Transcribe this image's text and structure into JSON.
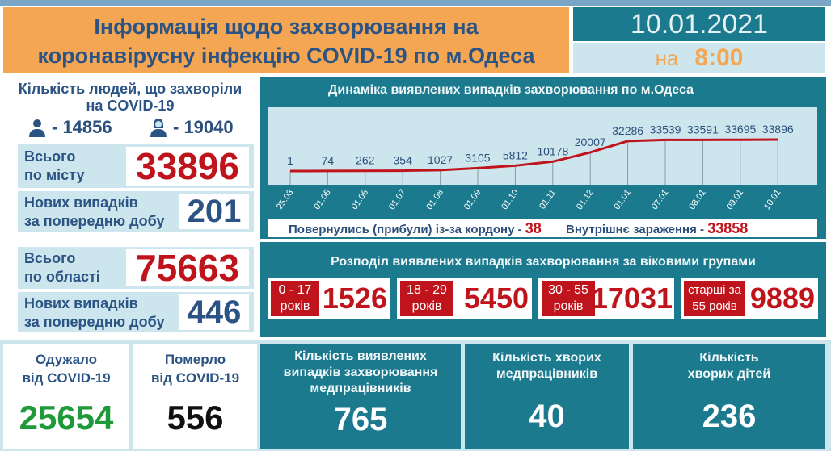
{
  "header": {
    "title_line1": "Інформація щодо захворювання на",
    "title_line2": "коронавірусну інфекцію COVID-19 по м.Одеса",
    "date": "10.01.2021",
    "time_prefix": "на",
    "time": "8:00"
  },
  "city": {
    "title_line1": "Кількість людей, що захворіли",
    "title_line2": "на COVID-19",
    "male_icon": "man-icon",
    "male": "- 14856",
    "female_icon": "woman-icon",
    "female": "- 19040",
    "total_label_1": "Всього",
    "total_label_2": "по місту",
    "total": "33896",
    "new_label_1": "Нових випадків",
    "new_label_2": "за попередню добу",
    "new": "201"
  },
  "region": {
    "total_label_1": "Всього",
    "total_label_2": "по області",
    "total": "75663",
    "new_label_1": "Нових випадків",
    "new_label_2": "за попередню добу",
    "new": "446"
  },
  "chart_data": {
    "type": "line",
    "title": "Динаміка виявлених випадків захворювання по м.Одеса",
    "categories": [
      "25.03",
      "01.05",
      "01.06",
      "01.07",
      "01.08",
      "01.09",
      "01.10",
      "01.11",
      "01.12",
      "01.01",
      "07.01",
      "08.01",
      "09.01",
      "10.01"
    ],
    "values": [
      1,
      74,
      262,
      354,
      1027,
      3105,
      5812,
      10178,
      20007,
      32286,
      33539,
      33591,
      33695,
      33896
    ],
    "data_labels": true,
    "grid": "vertical",
    "line_color": "#c0141c"
  },
  "chart_footer": {
    "returned_label": "Повернулись (прибули) із-за кордону -",
    "returned": "38",
    "internal_label": "Внутрішнє зараження  -",
    "internal": "33858"
  },
  "age": {
    "title": "Розподіл виявлених випадків захворювання за віковими групами",
    "groups": [
      {
        "l1": "0 - 17",
        "l2": "років",
        "value": "1526"
      },
      {
        "l1": "18 - 29",
        "l2": "років",
        "value": "5450"
      },
      {
        "l1": "30 - 55",
        "l2": "років",
        "value": "17031"
      },
      {
        "l1": "старші за",
        "l2": "55 років",
        "value": "9889"
      }
    ]
  },
  "bottom": {
    "recovered_l1": "Одужало",
    "recovered_l2": "від COVID-19",
    "recovered": "25654",
    "died_l1": "Померло",
    "died_l2": "від COVID-19",
    "died": "556",
    "medics_cases_l1": "Кількість виявлених",
    "medics_cases_l2": "випадків захворювання",
    "medics_cases_l3": "медпрацівників",
    "medics_cases": "765",
    "medics_sick_l1": "Кількість хворих",
    "medics_sick_l2": "медпрацівників",
    "medics_sick": "40",
    "children_l1": "Кількість",
    "children_l2": "хворих дітей",
    "children": "236"
  },
  "colors": {
    "teal": "#1b7a8e",
    "orange": "#f4a653",
    "light_blue": "#cde6ee",
    "red": "#c0141c",
    "green": "#1f9a3a",
    "navy": "#2b5484"
  }
}
